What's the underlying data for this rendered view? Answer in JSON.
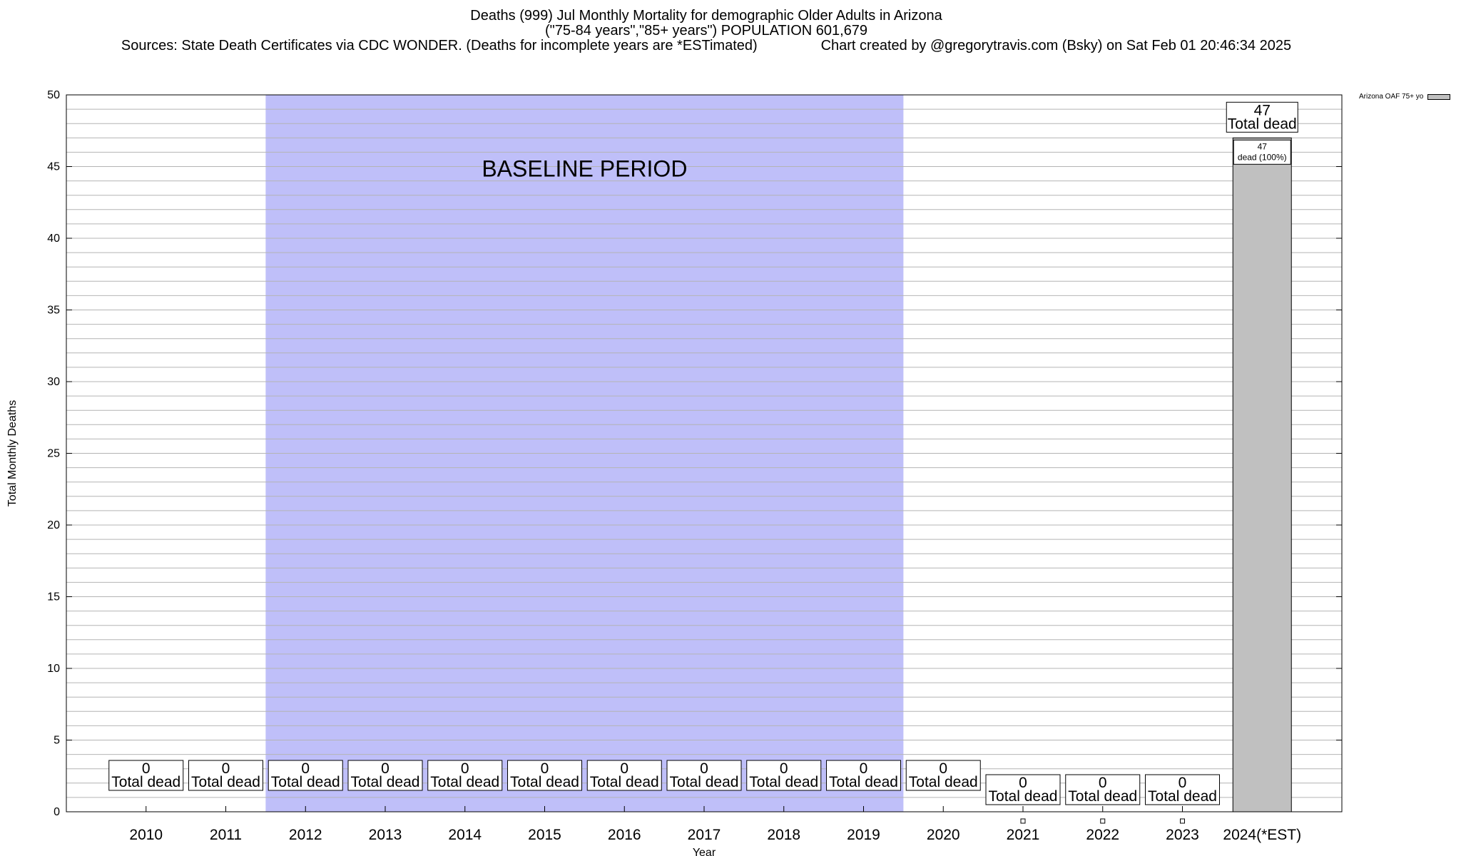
{
  "title": {
    "line1": "Deaths (999) Jul Monthly Mortality for demographic Older Adults in Arizona",
    "line2": "(\"75-84 years\",\"85+ years\") POPULATION 601,679",
    "line3": "Sources: State Death Certificates via CDC WONDER. (Deaths for incomplete years are *ESTimated)                Chart created by @gregorytravis.com (Bsky) on Sat Feb 01 20:46:34 2025"
  },
  "legend": {
    "label": "Arizona OAF 75+ yo",
    "color": "#c0c0c0"
  },
  "chart_data": {
    "type": "bar",
    "title": "Deaths (999) Jul Monthly Mortality for demographic Older Adults in Arizona",
    "xlabel": "Year",
    "ylabel": "Total Monthly Deaths",
    "ylim": [
      0,
      50
    ],
    "yticks": [
      0,
      5,
      10,
      15,
      20,
      25,
      30,
      35,
      40,
      45,
      50
    ],
    "grid": true,
    "legend_position": "top-right",
    "categories": [
      "2010",
      "2011",
      "2012",
      "2013",
      "2014",
      "2015",
      "2016",
      "2017",
      "2018",
      "2019",
      "2020",
      "2021",
      "2022",
      "2023",
      "2024(*EST)"
    ],
    "series": [
      {
        "name": "Arizona OAF 75+ yo",
        "color": "#c0c0c0",
        "values": [
          0,
          0,
          0,
          0,
          0,
          0,
          0,
          0,
          0,
          0,
          0,
          0,
          0,
          0,
          47
        ]
      }
    ],
    "total_label": "Total dead",
    "inner_label": "dead (100%)",
    "baseline": {
      "label": "BASELINE PERIOD",
      "from": "2012",
      "to": "2019",
      "color": "#bfbff9"
    }
  }
}
